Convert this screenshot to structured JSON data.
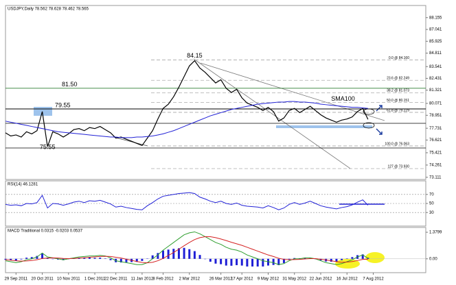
{
  "chart_data": [
    {
      "type": "line",
      "title": "USDJPY,Daily 78.562 78.628 78.462 78.565",
      "x": [
        0,
        1,
        2,
        3,
        4,
        5,
        6,
        7,
        8,
        9,
        10,
        11,
        12,
        13,
        14,
        15,
        16,
        17,
        18,
        19,
        20,
        21,
        22,
        23,
        24,
        25,
        26,
        27,
        28,
        29,
        30,
        31,
        32,
        33,
        34,
        35,
        36,
        37,
        38,
        39,
        40,
        41,
        42,
        43,
        44,
        45,
        46,
        47,
        48,
        49,
        50,
        51,
        52,
        53,
        54,
        55,
        56,
        57,
        58,
        59,
        60,
        61,
        62,
        63,
        64,
        65,
        66,
        67,
        68,
        69
      ],
      "series": [
        {
          "color": "#000000",
          "type": "line",
          "values": [
            77.3,
            77.0,
            77.1,
            76.9,
            77.4,
            77.2,
            77.5,
            79.3,
            76.0,
            77.4,
            77.2,
            76.9,
            77.2,
            77.6,
            77.7,
            77.5,
            77.8,
            77.7,
            77.9,
            77.6,
            77.3,
            76.8,
            76.9,
            76.7,
            76.5,
            76.3,
            76.1,
            76.8,
            77.5,
            78.6,
            79.6,
            80.0,
            80.7,
            81.6,
            82.6,
            83.6,
            84.1,
            83.4,
            83.0,
            82.5,
            82.0,
            82.3,
            81.5,
            81.1,
            81.4,
            80.6,
            80.1,
            79.9,
            79.7,
            79.4,
            79.7,
            79.3,
            78.4,
            78.7,
            79.4,
            79.6,
            79.2,
            79.5,
            79.8,
            79.4,
            79.0,
            78.7,
            78.5,
            78.3,
            78.5,
            78.6,
            78.8,
            79.3,
            79.6,
            78.565
          ]
        },
        {
          "name": "SMA100",
          "color": "#1f1fd6",
          "type": "line",
          "values": [
            78.4,
            78.3,
            78.2,
            78.1,
            78.0,
            77.9,
            77.8,
            77.7,
            77.6,
            77.5,
            77.4,
            77.35,
            77.3,
            77.25,
            77.2,
            77.15,
            77.1,
            77.05,
            77.0,
            76.95,
            76.9,
            76.9,
            76.85,
            76.85,
            76.85,
            76.9,
            76.9,
            76.95,
            77.0,
            77.1,
            77.2,
            77.35,
            77.5,
            77.7,
            77.9,
            78.1,
            78.3,
            78.5,
            78.7,
            78.9,
            79.05,
            79.2,
            79.35,
            79.5,
            79.6,
            79.7,
            79.8,
            79.9,
            80.0,
            80.05,
            80.1,
            80.15,
            80.2,
            80.2,
            80.25,
            80.25,
            80.2,
            80.2,
            80.15,
            80.1,
            80.0,
            79.95,
            79.9,
            79.85,
            79.8,
            79.75,
            79.7,
            79.7,
            79.65,
            79.6
          ]
        }
      ],
      "xlim": [
        0,
        80
      ],
      "xticks": [
        {
          "value": 2,
          "label": "29 Sep 2011"
        },
        {
          "value": 7,
          "label": "20 Oct 2011"
        },
        {
          "value": 12,
          "label": "10 Nov 2011"
        },
        {
          "value": 17,
          "label": "1 Dec 2011"
        },
        {
          "value": 21,
          "label": "22 Dec 2011"
        },
        {
          "value": 26,
          "label": "11 Jan 2012"
        },
        {
          "value": 30,
          "label": "8 Feb 2012"
        },
        {
          "value": 35,
          "label": "2 Mar 2012"
        },
        {
          "value": 41,
          "label": "26 Mar 2012"
        },
        {
          "value": 45,
          "label": "17 Apr 2012"
        },
        {
          "value": 50,
          "label": "9 May 2012"
        },
        {
          "value": 55,
          "label": "31 May 2012"
        },
        {
          "value": 60,
          "label": "22 Jun 2012"
        },
        {
          "value": 65,
          "label": "16 Jul 2012"
        },
        {
          "value": 70,
          "label": "7 Aug 2012"
        }
      ],
      "ylim": [
        72.9,
        89.3
      ],
      "yticks": [
        88.155,
        87.041,
        85.925,
        84.811,
        83.541,
        82.431,
        81.321,
        80.071,
        78.951,
        77.731,
        76.621,
        75.421,
        74.261,
        73.111
      ],
      "levels": [
        {
          "value": 81.5,
          "label": "81.50",
          "color": "#2e7d32"
        },
        {
          "value": 79.55,
          "label": "79.55",
          "color": "#000000"
        }
      ],
      "fibonacci": [
        {
          "value": 84.16,
          "label": "0.0 @ 84.160"
        },
        {
          "value": 82.249,
          "label": "23.6 @ 82.249"
        },
        {
          "value": 81.073,
          "label": "38.2 @ 81.073"
        },
        {
          "value": 80.151,
          "label": "50.0 @ 80.151"
        },
        {
          "value": 79.229,
          "label": "61.8 @ 79.229"
        },
        {
          "value": 76.063,
          "label": "100.0 @ 76.063"
        },
        {
          "value": 73.93,
          "label": "127 @ 73.930"
        }
      ],
      "annotations": [
        {
          "label": "84.15",
          "value": 84.15,
          "x": 36
        },
        {
          "label": "75.55",
          "value": 75.55,
          "x": 8
        }
      ]
    },
    {
      "type": "line",
      "title": "RSI(14) 46.1281",
      "series": [
        {
          "color": "#1f1fd6",
          "type": "line",
          "values": [
            48,
            46,
            47,
            45,
            50,
            49,
            52,
            68,
            40,
            50,
            49,
            46,
            49,
            53,
            55,
            52,
            56,
            55,
            57,
            53,
            49,
            42,
            44,
            41,
            39,
            37,
            36,
            45,
            52,
            60,
            66,
            68,
            70,
            72,
            73,
            74,
            72,
            64,
            60,
            55,
            52,
            55,
            50,
            48,
            51,
            46,
            44,
            43,
            42,
            40,
            45,
            41,
            36,
            40,
            48,
            52,
            48,
            51,
            55,
            50,
            45,
            42,
            40,
            38,
            41,
            43,
            47,
            53,
            58,
            46.1281
          ]
        }
      ],
      "ylim": [
        0,
        100
      ],
      "yticks": [
        70,
        50,
        30
      ],
      "grid": true
    },
    {
      "type": "macd",
      "title": "MACD Traditional 0.0315 -0.0203 0.0537",
      "series": [
        {
          "color": "#1f1fd6",
          "type": "bar",
          "values": [
            -0.05,
            -0.08,
            -0.1,
            -0.03,
            0.06,
            0.09,
            0.15,
            0.28,
            0.06,
            0,
            -0.04,
            -0.07,
            -0.01,
            0.03,
            0.06,
            0.06,
            0.07,
            0.05,
            0.06,
            0.02,
            -0.07,
            -0.18,
            -0.19,
            -0.18,
            -0.17,
            -0.16,
            -0.11,
            0.01,
            0.18,
            0.3,
            0.43,
            0.48,
            0.52,
            0.55,
            0.57,
            0.5,
            0.4,
            0.2,
            0,
            -0.15,
            -0.25,
            -0.28,
            -0.35,
            -0.36,
            -0.33,
            -0.35,
            -0.4,
            -0.4,
            -0.4,
            -0.4,
            -0.35,
            -0.32,
            -0.33,
            -0.22,
            -0.05,
            0.04,
            0.03,
            0.06,
            0.04,
            -0.01,
            -0.08,
            -0.14,
            -0.15,
            -0.15,
            -0.07,
            0.02,
            0.09,
            0.19,
            0.23,
            0.0537
          ]
        },
        {
          "color": "#2e9e2e",
          "type": "line",
          "values": [
            -0.1,
            -0.15,
            -0.2,
            -0.15,
            -0.05,
            0,
            0.1,
            0.3,
            0.1,
            0.05,
            0,
            -0.05,
            0,
            0.05,
            0.1,
            0.12,
            0.15,
            0.15,
            0.18,
            0.15,
            0.05,
            -0.1,
            -0.15,
            -0.2,
            -0.25,
            -0.3,
            -0.3,
            -0.2,
            0,
            0.2,
            0.45,
            0.65,
            0.85,
            1.05,
            1.25,
            1.35,
            1.4,
            1.3,
            1.15,
            1.0,
            0.85,
            0.75,
            0.6,
            0.5,
            0.45,
            0.35,
            0.2,
            0.1,
            0,
            -0.1,
            -0.15,
            -0.2,
            -0.3,
            -0.25,
            -0.1,
            0,
            0,
            0.05,
            0.05,
            0,
            -0.1,
            -0.2,
            -0.25,
            -0.3,
            -0.25,
            -0.15,
            -0.05,
            0.1,
            0.2,
            0.0315
          ]
        },
        {
          "color": "#d42020",
          "type": "line",
          "values": [
            -0.05,
            -0.07,
            -0.1,
            -0.12,
            -0.11,
            -0.09,
            -0.05,
            0.02,
            0.04,
            0.05,
            0.04,
            0.02,
            0.01,
            0.02,
            0.04,
            0.06,
            0.08,
            0.1,
            0.12,
            0.13,
            0.12,
            0.08,
            0.04,
            -0.02,
            -0.08,
            -0.14,
            -0.19,
            -0.21,
            -0.18,
            -0.1,
            0.02,
            0.17,
            0.33,
            0.5,
            0.68,
            0.85,
            1.0,
            1.1,
            1.15,
            1.15,
            1.1,
            1.03,
            0.95,
            0.86,
            0.78,
            0.7,
            0.6,
            0.5,
            0.4,
            0.3,
            0.2,
            0.12,
            0.03,
            -0.03,
            -0.05,
            -0.04,
            -0.03,
            -0.01,
            0.01,
            0.01,
            -0.02,
            -0.06,
            -0.1,
            -0.15,
            -0.18,
            -0.17,
            -0.14,
            -0.09,
            -0.03,
            -0.0203
          ]
        }
      ],
      "ylim": [
        -0.72,
        1.63
      ],
      "yticks": [
        1.3799,
        {
          "value": 0,
          "label": "0.00"
        }
      ]
    }
  ]
}
